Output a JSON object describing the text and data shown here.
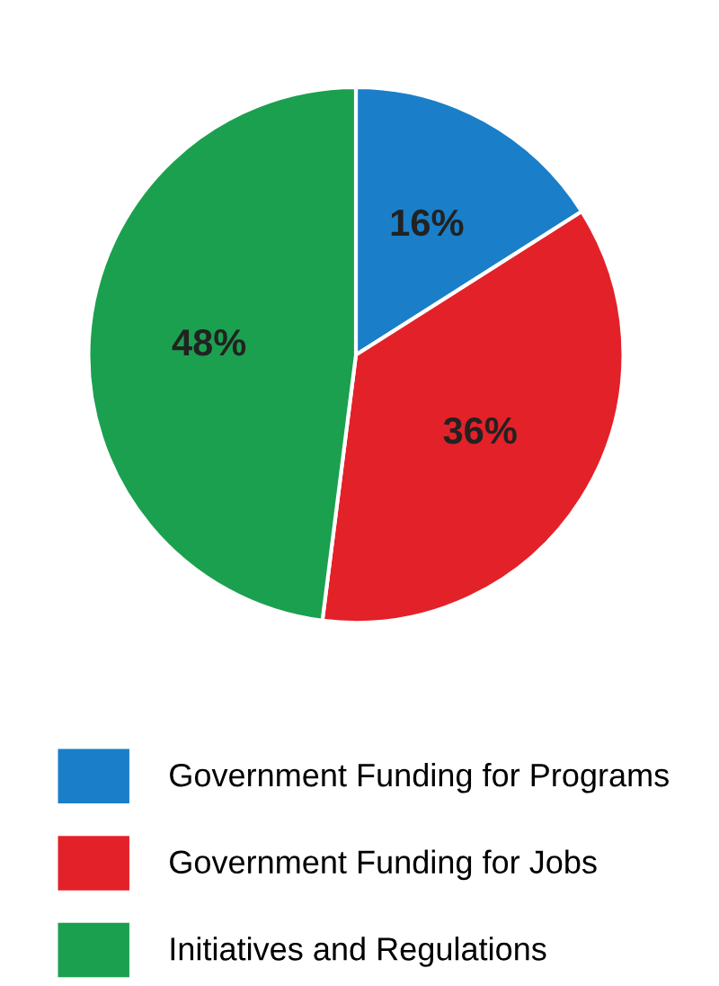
{
  "chart_data": {
    "type": "pie",
    "categories": [
      "Government Funding for Programs",
      "Government Funding for Jobs",
      "Initiatives and Regulations"
    ],
    "values": [
      16,
      36,
      48
    ],
    "colors": [
      "#1a7fc8",
      "#e32129",
      "#1ba04f"
    ],
    "value_labels": [
      "16%",
      "36%",
      "48%"
    ],
    "legend": "bottom"
  }
}
